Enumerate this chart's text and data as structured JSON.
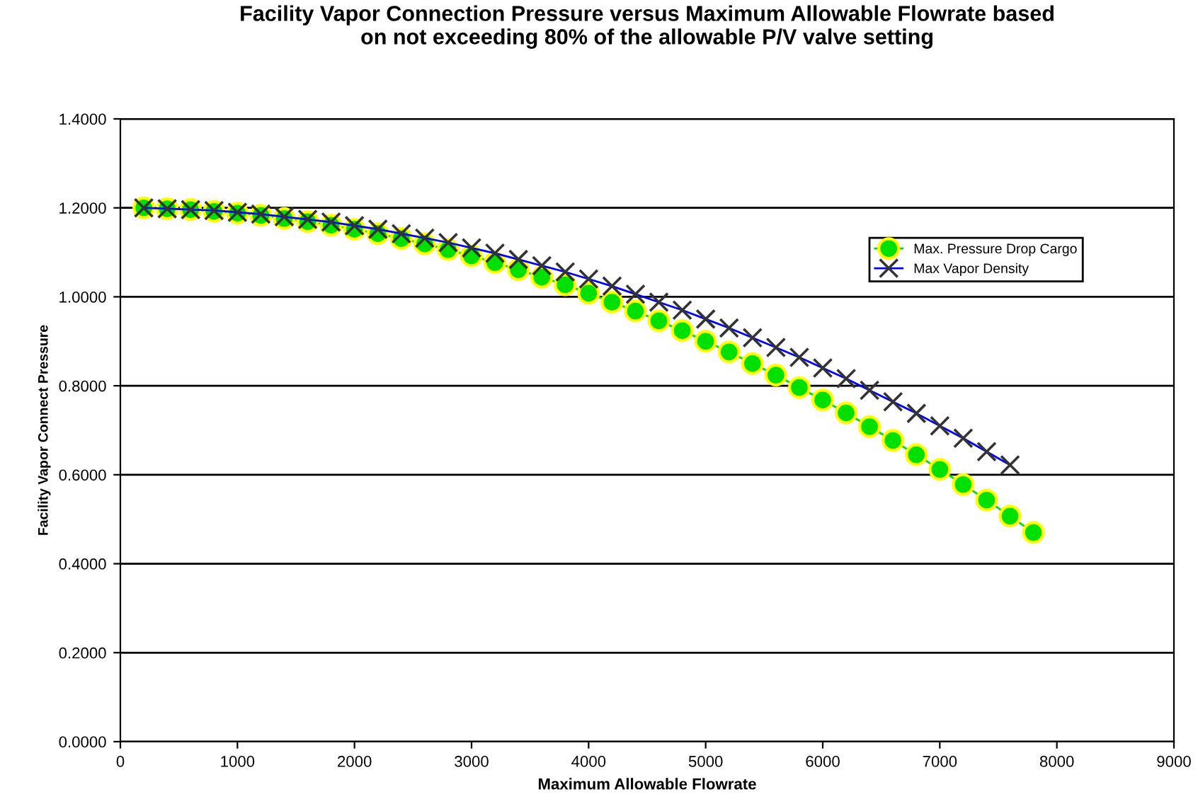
{
  "chart_data": {
    "type": "line",
    "title": "Facility Vapor Connection Pressure versus Maximum Allowable Flowrate based\non not exceeding 80% of the allowable P/V valve setting",
    "xlabel": "Maximum Allowable Flowrate",
    "ylabel": "Facility Vapor Connect Pressure",
    "xlim": [
      0,
      9000
    ],
    "xticks": [
      0,
      1000,
      2000,
      3000,
      4000,
      5000,
      6000,
      7000,
      8000,
      9000
    ],
    "ylim": [
      0,
      1.4
    ],
    "yticks": [
      {
        "value": 0,
        "label": "0.0000"
      },
      {
        "value": 0.2,
        "label": "0.2000"
      },
      {
        "value": 0.4,
        "label": "0.4000"
      },
      {
        "value": 0.6,
        "label": "0.6000"
      },
      {
        "value": 0.8,
        "label": "0.8000"
      },
      {
        "value": 1.0,
        "label": "1.0000"
      },
      {
        "value": 1.2,
        "label": "1.2000"
      },
      {
        "value": 1.4,
        "label": "1.4000"
      }
    ],
    "grid": "y",
    "legend": "top right",
    "series": [
      {
        "name": "Max. Pressure Drop Cargo",
        "color": "#00e000",
        "marker": "circle",
        "x": [
          200,
          400,
          600,
          800,
          1000,
          1200,
          1400,
          1600,
          1800,
          2000,
          2200,
          2400,
          2600,
          2800,
          3000,
          3200,
          3400,
          3600,
          3800,
          4000,
          4200,
          4400,
          4600,
          4800,
          5000,
          5200,
          5400,
          5600,
          5800,
          6000,
          6200,
          6400,
          6600,
          6800,
          7000,
          7200,
          7400,
          7600,
          7800
        ],
        "values": [
          1.2,
          1.198,
          1.196,
          1.192,
          1.188,
          1.183,
          1.176,
          1.169,
          1.161,
          1.152,
          1.142,
          1.131,
          1.119,
          1.106,
          1.092,
          1.077,
          1.061,
          1.044,
          1.027,
          1.008,
          0.988,
          0.968,
          0.946,
          0.924,
          0.9,
          0.876,
          0.85,
          0.824,
          0.796,
          0.768,
          0.739,
          0.708,
          0.677,
          0.645,
          0.612,
          0.578,
          0.543,
          0.507,
          0.47
        ]
      },
      {
        "name": "Max Vapor Density",
        "color": "#0000ff",
        "marker": "cross",
        "x": [
          200,
          400,
          600,
          800,
          1000,
          1200,
          1400,
          1600,
          1800,
          2000,
          2200,
          2400,
          2600,
          2800,
          3000,
          3200,
          3400,
          3600,
          3800,
          4000,
          4200,
          4400,
          4600,
          4800,
          5000,
          5200,
          5400,
          5600,
          5800,
          6000,
          6200,
          6400,
          6600,
          6800,
          7000,
          7200,
          7400,
          7600
        ],
        "values": [
          1.2,
          1.198,
          1.196,
          1.194,
          1.19,
          1.186,
          1.18,
          1.174,
          1.168,
          1.16,
          1.152,
          1.142,
          1.132,
          1.122,
          1.11,
          1.098,
          1.084,
          1.07,
          1.056,
          1.04,
          1.024,
          1.006,
          0.988,
          0.97,
          0.95,
          0.93,
          0.908,
          0.886,
          0.864,
          0.84,
          0.816,
          0.79,
          0.764,
          0.738,
          0.71,
          0.682,
          0.652,
          0.622
        ]
      }
    ]
  }
}
